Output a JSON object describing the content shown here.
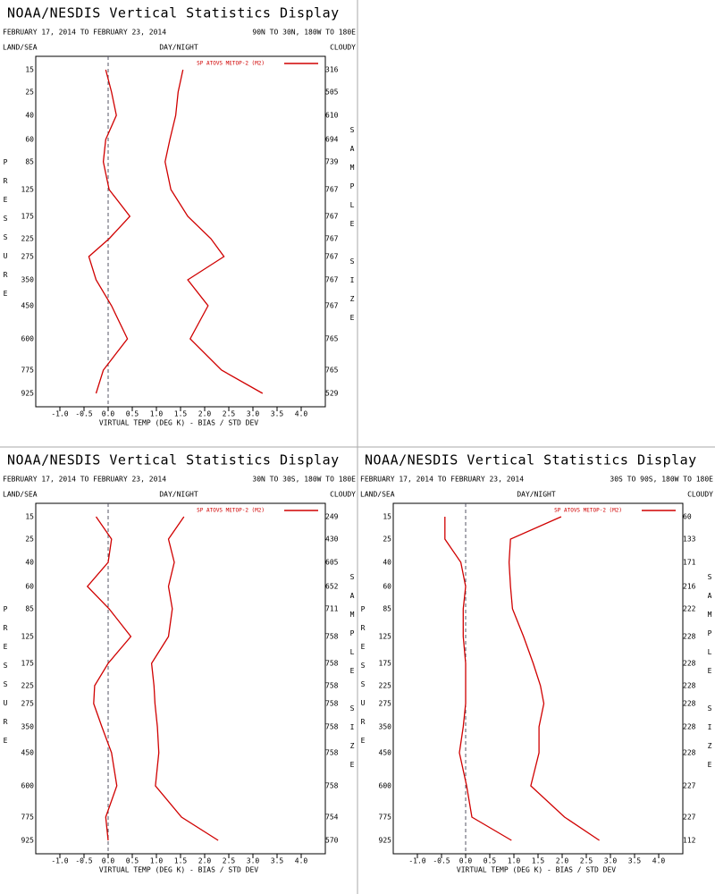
{
  "chart_data": [
    {
      "type": "line",
      "title": "NOAA/NESDIS Vertical Statistics Display",
      "subtitle": "FEBRUARY 17, 2014 TO FEBRUARY 23, 2014",
      "region": "90N TO 30N, 180W TO 180E",
      "left_label": "LAND/SEA",
      "center_label": "DAY/NIGHT",
      "right_label": "CLOUDY",
      "ylabel": "PRESSURE",
      "y2label": "SAMPLE SIZE",
      "xlabel": "VIRTUAL TEMP (DEG K) - BIAS / STD DEV",
      "y": [
        15,
        25,
        40,
        60,
        85,
        125,
        175,
        225,
        275,
        350,
        450,
        600,
        775,
        925
      ],
      "sample_size": [
        316,
        505,
        610,
        694,
        739,
        767,
        767,
        767,
        767,
        767,
        767,
        765,
        765,
        529
      ],
      "xlim": [
        -1.5,
        4.5
      ],
      "xticks": [
        {
          "value": -1,
          "label": "-1.0"
        },
        {
          "value": -0.5,
          "label": "-0.5"
        },
        {
          "value": 0,
          "label": "0.0"
        },
        {
          "value": 0.5,
          "label": "0.5"
        },
        {
          "value": 1,
          "label": "1.0"
        },
        {
          "value": 1.5,
          "label": "1.5"
        },
        {
          "value": 2,
          "label": "2.0"
        },
        {
          "value": 2.5,
          "label": "2.5"
        },
        {
          "value": 3,
          "label": "3.0"
        },
        {
          "value": 3.5,
          "label": "3.5"
        },
        {
          "value": 4,
          "label": "4.0"
        }
      ],
      "series": [
        {
          "name": "SP ATOVS METOP-2 (M2)",
          "color": "#d00000",
          "values": [
            -0.05,
            0.07,
            0.17,
            -0.05,
            -0.1,
            0.02,
            0.45,
            0.02,
            -0.4,
            -0.25,
            0.07,
            0.4,
            -0.1,
            -0.25
          ]
        },
        {
          "color": "#d00000",
          "values": [
            1.55,
            1.45,
            1.4,
            1.28,
            1.18,
            1.3,
            1.65,
            2.13,
            2.4,
            1.65,
            2.07,
            1.7,
            2.35,
            3.2
          ]
        }
      ]
    },
    {
      "type": "line",
      "title": "NOAA/NESDIS Vertical Statistics Display",
      "subtitle": "FEBRUARY 17, 2014 TO FEBRUARY 23, 2014",
      "region": "30N TO 30S, 180W TO 180E",
      "left_label": "LAND/SEA",
      "center_label": "DAY/NIGHT",
      "right_label": "CLOUDY",
      "ylabel": "PRESSURE",
      "y2label": "SAMPLE SIZE",
      "xlabel": "VIRTUAL TEMP (DEG K) - BIAS / STD DEV",
      "y": [
        15,
        25,
        40,
        60,
        85,
        125,
        175,
        225,
        275,
        350,
        450,
        600,
        775,
        925
      ],
      "sample_size": [
        249,
        430,
        605,
        652,
        711,
        758,
        758,
        758,
        758,
        758,
        758,
        758,
        754,
        570
      ],
      "xlim": [
        -1.5,
        4.5
      ],
      "xticks": [
        {
          "value": -1,
          "label": "-1.0"
        },
        {
          "value": -0.5,
          "label": "-0.5"
        },
        {
          "value": 0,
          "label": "0.0"
        },
        {
          "value": 0.5,
          "label": "0.5"
        },
        {
          "value": 1,
          "label": "1.0"
        },
        {
          "value": 1.5,
          "label": "1.5"
        },
        {
          "value": 2,
          "label": "2.0"
        },
        {
          "value": 2.5,
          "label": "2.5"
        },
        {
          "value": 3,
          "label": "3.0"
        },
        {
          "value": 3.5,
          "label": "3.5"
        },
        {
          "value": 4,
          "label": "4.0"
        }
      ],
      "series": [
        {
          "name": "SP ATOVS METOP-2 (M2)",
          "color": "#d00000",
          "values": [
            -0.25,
            0.07,
            0,
            -0.43,
            0.02,
            0.47,
            0,
            -0.28,
            -0.3,
            -0.13,
            0.07,
            0.18,
            -0.05,
            0
          ]
        },
        {
          "color": "#d00000",
          "values": [
            1.57,
            1.25,
            1.37,
            1.25,
            1.33,
            1.25,
            0.9,
            0.95,
            0.97,
            1.02,
            1.05,
            0.98,
            1.52,
            2.28
          ]
        }
      ]
    },
    {
      "type": "line",
      "title": "NOAA/NESDIS Vertical Statistics Display",
      "subtitle": "FEBRUARY 17, 2014 TO FEBRUARY 23, 2014",
      "region": "30S TO 90S, 180W TO 180E",
      "left_label": "LAND/SEA",
      "center_label": "DAY/NIGHT",
      "right_label": "CLOUDY",
      "ylabel": "PRESSURE",
      "y2label": "SAMPLE SIZE",
      "xlabel": "VIRTUAL TEMP (DEG K) - BIAS / STD DEV",
      "y": [
        15,
        25,
        40,
        60,
        85,
        125,
        175,
        225,
        275,
        350,
        450,
        600,
        775,
        925
      ],
      "sample_size": [
        60,
        133,
        171,
        216,
        222,
        228,
        228,
        228,
        228,
        228,
        228,
        227,
        227,
        112
      ],
      "xlim": [
        -1.5,
        4.5
      ],
      "xticks": [
        {
          "value": -1,
          "label": "-1.0"
        },
        {
          "value": -0.5,
          "label": "-0.5"
        },
        {
          "value": 0,
          "label": "0.0"
        },
        {
          "value": 0.5,
          "label": "0.5"
        },
        {
          "value": 1,
          "label": "1.0"
        },
        {
          "value": 1.5,
          "label": "1.5"
        },
        {
          "value": 2,
          "label": "2.0"
        },
        {
          "value": 2.5,
          "label": "2.5"
        },
        {
          "value": 3,
          "label": "3.0"
        },
        {
          "value": 3.5,
          "label": "3.5"
        },
        {
          "value": 4,
          "label": "4.0"
        }
      ],
      "series": [
        {
          "name": "SP ATOVS METOP-2 (M2)",
          "color": "#d00000",
          "values": [
            -0.43,
            -0.43,
            -0.1,
            0,
            -0.05,
            -0.05,
            0,
            0,
            0,
            -0.05,
            -0.13,
            0.02,
            0.13,
            0.95
          ]
        },
        {
          "color": "#d00000",
          "values": [
            1.98,
            0.93,
            0.9,
            0.93,
            0.97,
            1.2,
            1.4,
            1.55,
            1.62,
            1.52,
            1.52,
            1.35,
            2.05,
            2.77
          ]
        }
      ]
    }
  ]
}
